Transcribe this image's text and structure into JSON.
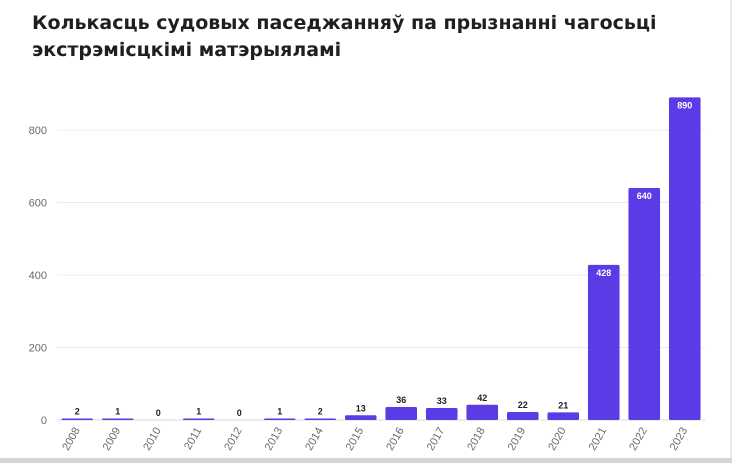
{
  "chart_data": {
    "type": "bar",
    "title": "Колькасць судовых паседжанняў па прызнанні чагосьці экстрэмісцкімі матэрыяламі",
    "categories": [
      "2008",
      "2009",
      "2010",
      "2011",
      "2012",
      "2013",
      "2014",
      "2015",
      "2016",
      "2017",
      "2018",
      "2019",
      "2020",
      "2021",
      "2022",
      "2023"
    ],
    "values": [
      2,
      1,
      0,
      1,
      0,
      1,
      2,
      13,
      36,
      33,
      42,
      22,
      21,
      428,
      640,
      890
    ],
    "xlabel": "",
    "ylabel": "",
    "ylim": [
      0,
      960
    ],
    "yticks": [
      0,
      200,
      400,
      600,
      800
    ],
    "grid": true,
    "bar_color": "#5a3be6",
    "data_labels": true
  }
}
